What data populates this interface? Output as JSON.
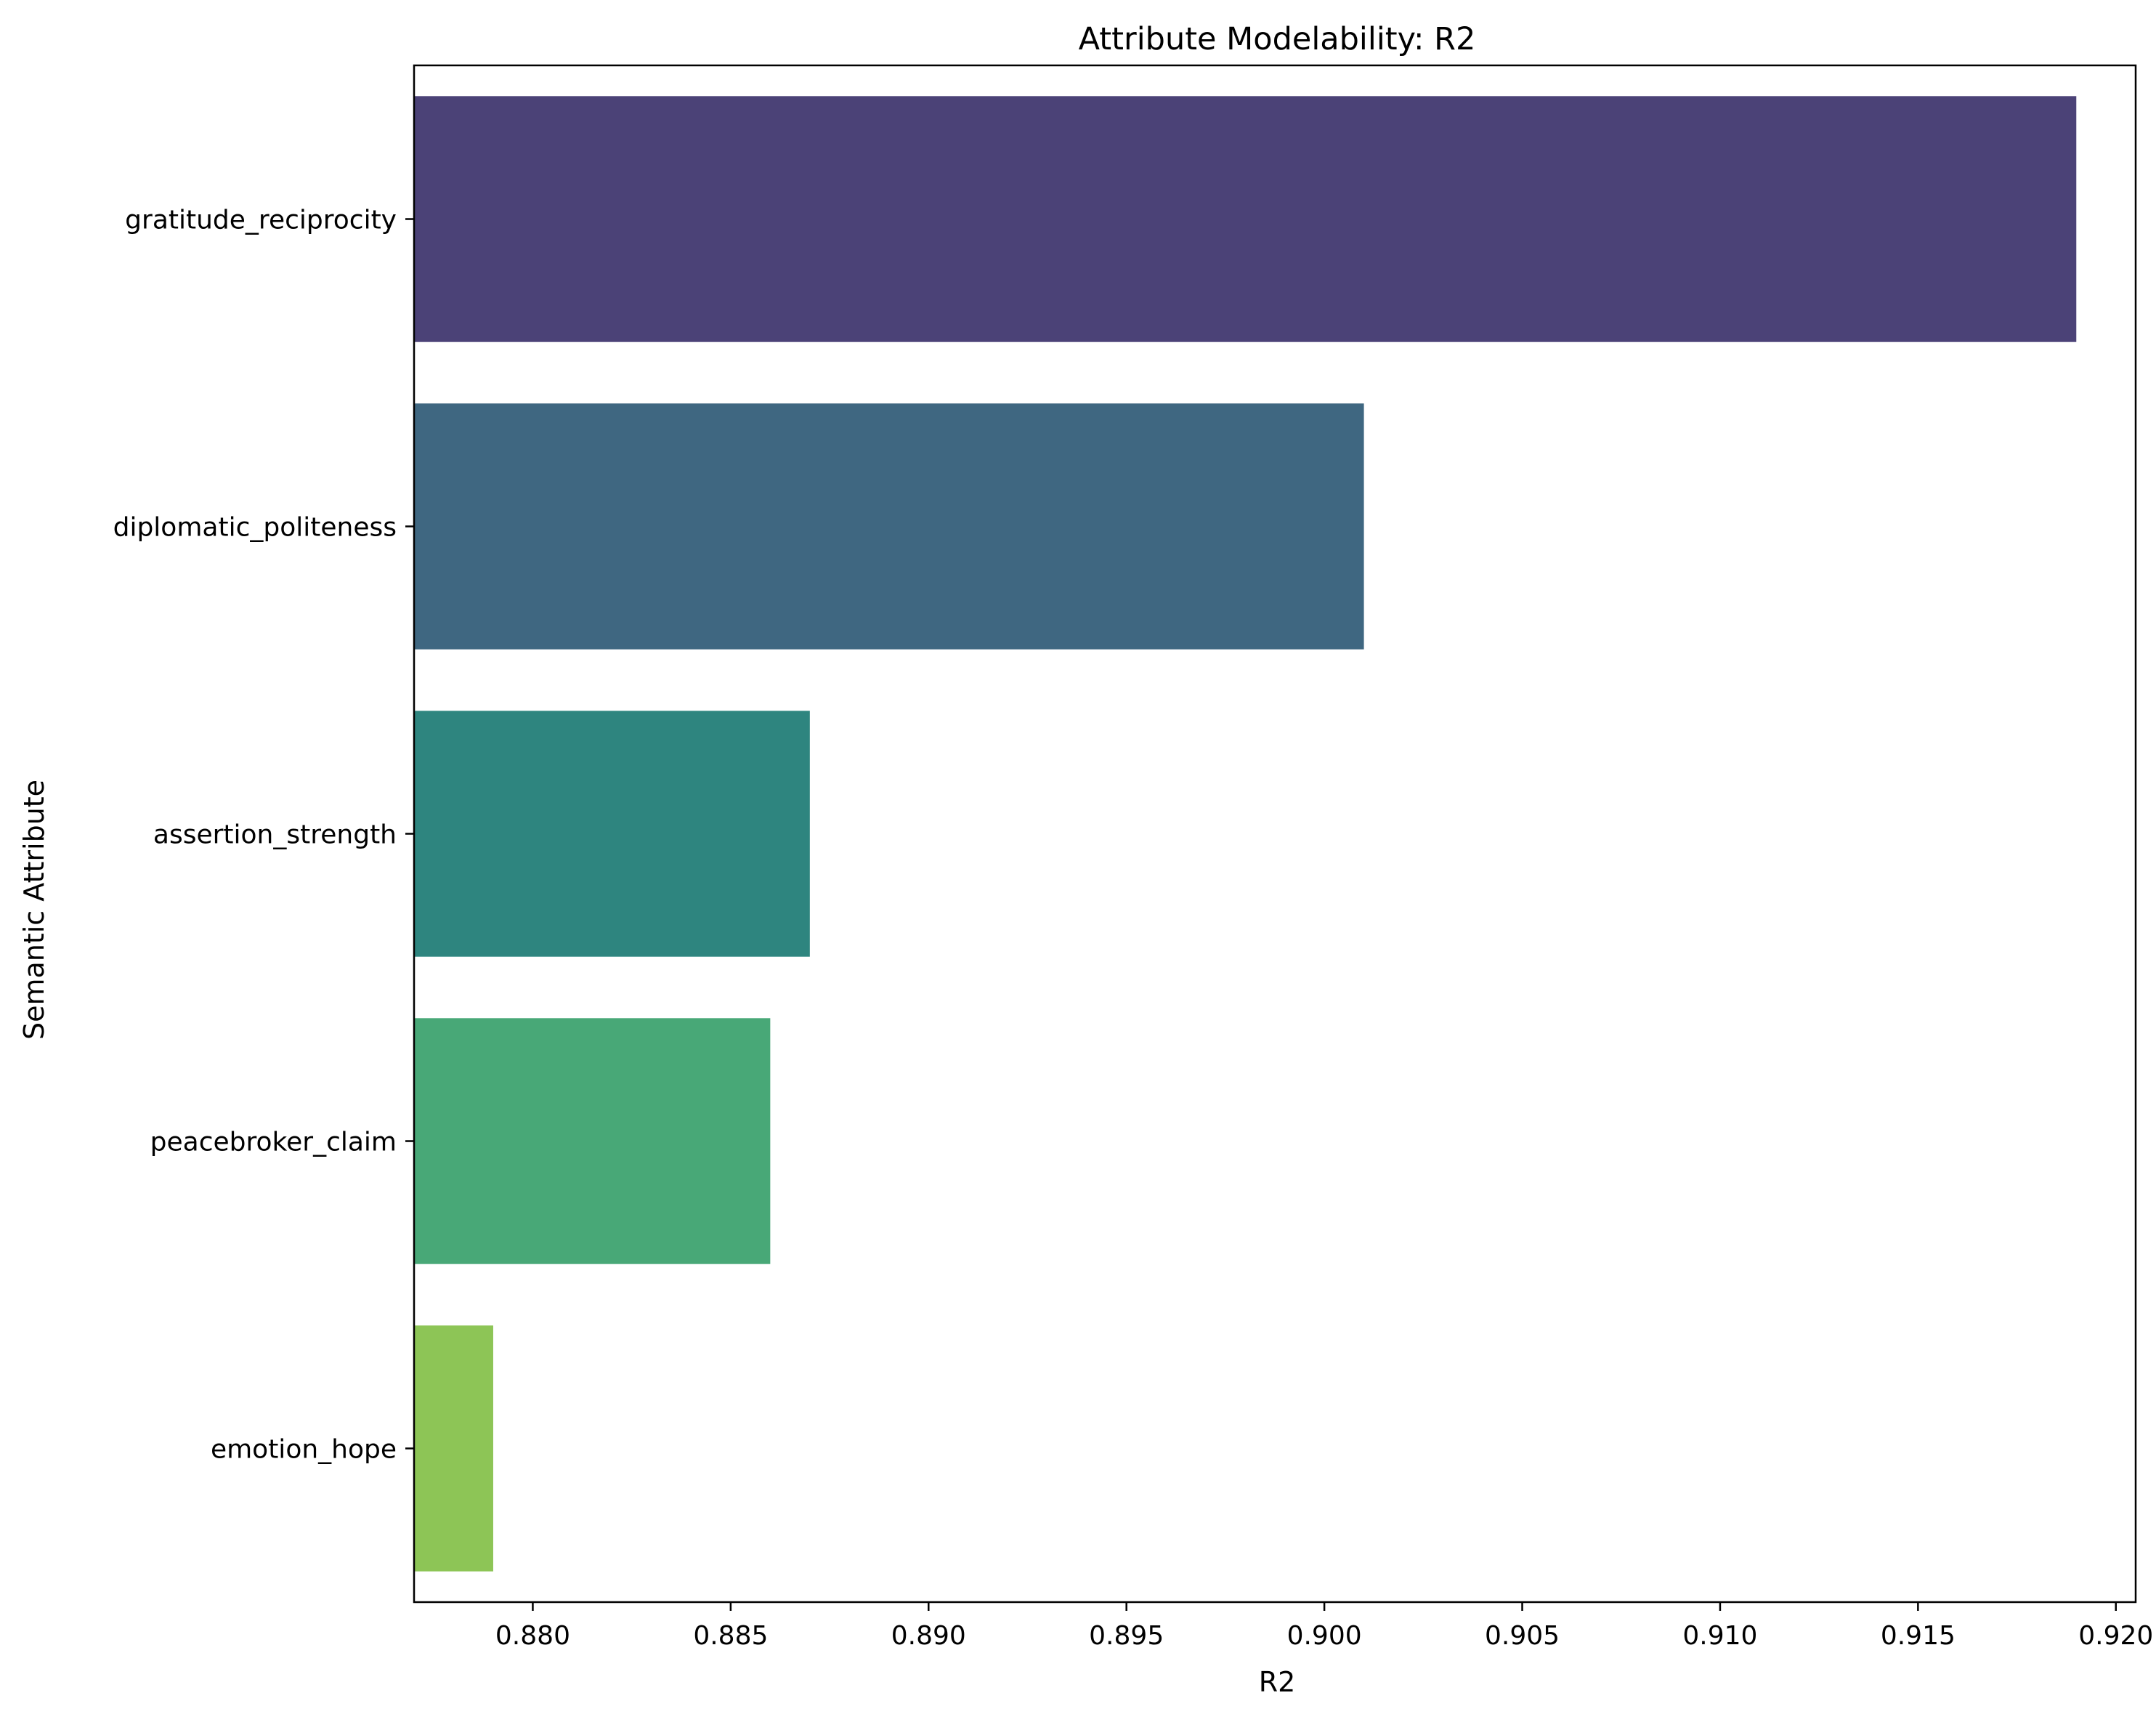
{
  "chart_data": {
    "type": "bar",
    "orientation": "horizontal",
    "title": "Attribute Modelability: R2",
    "xlabel": "R2",
    "ylabel": "Semantic Attribute",
    "categories": [
      "gratitude_reciprocity",
      "diplomatic_politeness",
      "assertion_strength",
      "peacebroker_claim",
      "emotion_hope"
    ],
    "values": [
      0.919,
      0.901,
      0.887,
      0.886,
      0.879
    ],
    "colors": [
      "#4b4277",
      "#3f6781",
      "#2e857f",
      "#48a877",
      "#8dc556"
    ],
    "xlim": [
      0.877,
      0.9205
    ],
    "xticks": [
      "0.880",
      "0.885",
      "0.890",
      "0.895",
      "0.900",
      "0.905",
      "0.910",
      "0.915",
      "0.920"
    ],
    "grid": false,
    "legend": "none"
  }
}
